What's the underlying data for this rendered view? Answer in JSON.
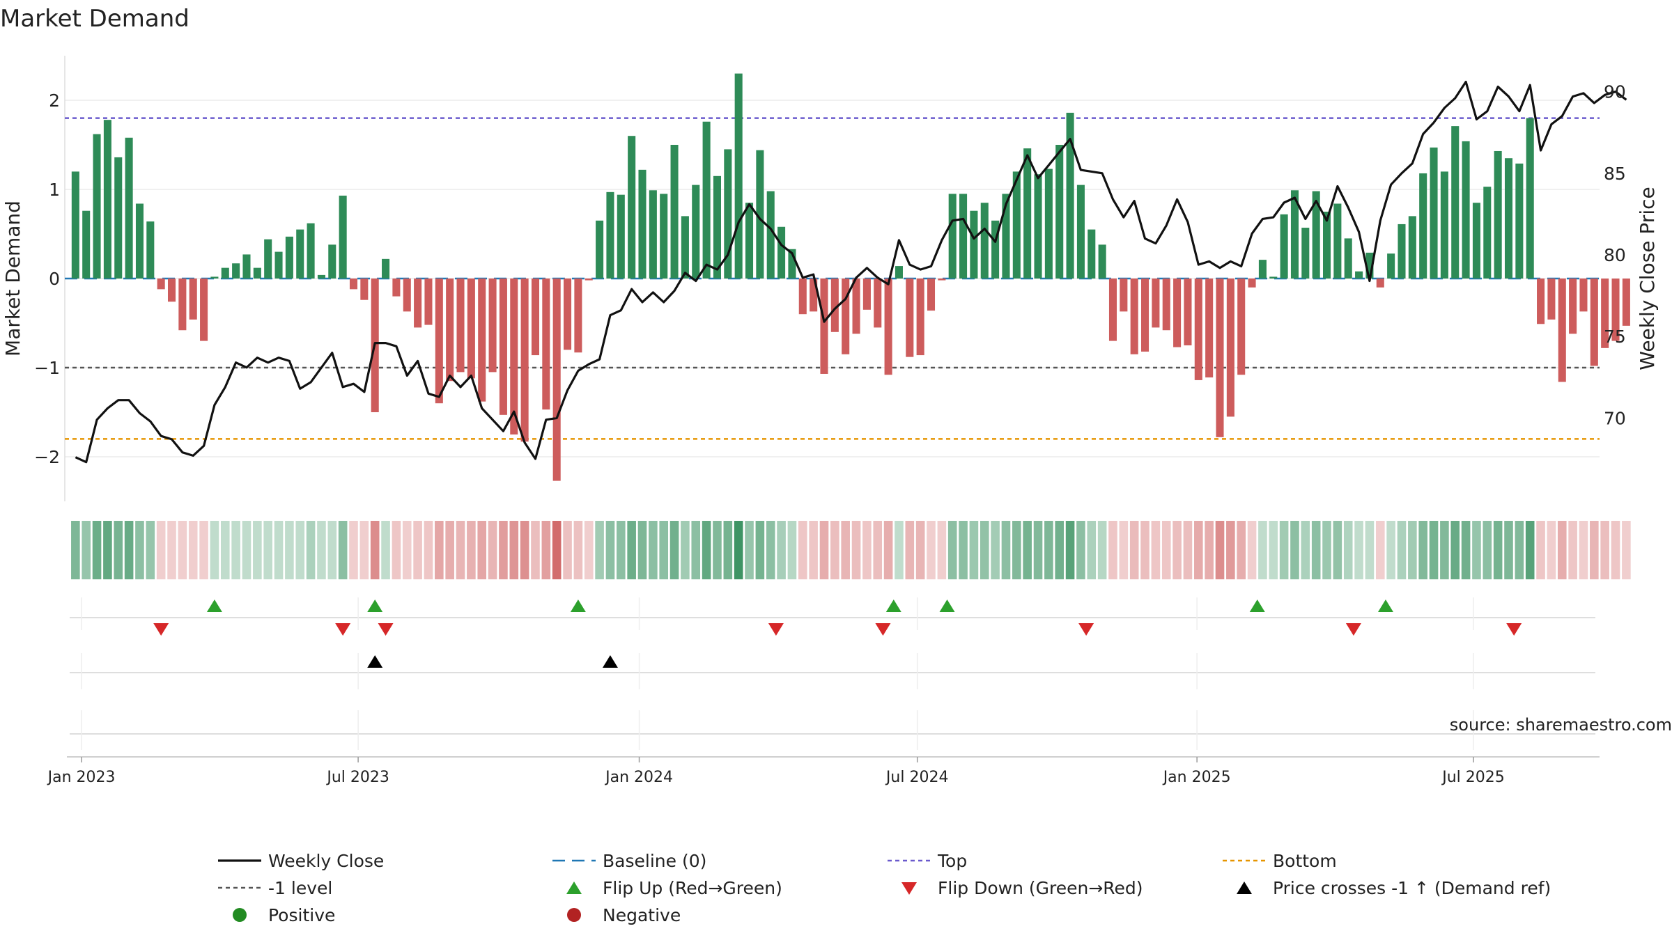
{
  "chart_data": {
    "type": "bar",
    "title": "Market Demand",
    "ylabel_left": "Market Demand",
    "ylabel_right": "Weekly Close Price",
    "source": "source: sharemaestro.com",
    "ylim_left": [
      -2.5,
      2.5
    ],
    "yticks_left": [
      {
        "v": 2,
        "label": "2"
      },
      {
        "v": 1,
        "label": "1"
      },
      {
        "v": 0,
        "label": "0"
      },
      {
        "v": -1,
        "label": "−1"
      },
      {
        "v": -2,
        "label": "−2"
      }
    ],
    "ylim_right": [
      64.9,
      92.2
    ],
    "yticks_right": [
      {
        "v": 90,
        "label": "90"
      },
      {
        "v": 85,
        "label": "85"
      },
      {
        "v": 80,
        "label": "80"
      },
      {
        "v": 75,
        "label": "75"
      },
      {
        "v": 70,
        "label": "70"
      }
    ],
    "x_start_week": -1,
    "x_end_week": 142.5,
    "xticks": [
      {
        "week": 0.57,
        "label": "Jan 2023"
      },
      {
        "week": 26.43,
        "label": "Jul 2023"
      },
      {
        "week": 52.71,
        "label": "Jan 2024"
      },
      {
        "week": 78.71,
        "label": "Jul 2024"
      },
      {
        "week": 104.86,
        "label": "Jan 2025"
      },
      {
        "week": 130.71,
        "label": "Jul 2025"
      }
    ],
    "reference_lines": {
      "baseline": 0,
      "top": 1.8,
      "bottom": -1.8,
      "minus_one": -1
    },
    "colors": {
      "positive": "#2e8b57",
      "negative": "#cd5c5c",
      "price": "#111111",
      "baseline": "#1f77b4",
      "top": "#6a5acd",
      "bottom": "#e69500",
      "minus_one": "#555555",
      "flip_up": "#2ca02c",
      "flip_down": "#d62728",
      "cross": "#000000",
      "legend_positive": "#228b22",
      "legend_negative": "#b22222"
    },
    "demand": [
      1.2,
      0.76,
      1.62,
      1.78,
      1.36,
      1.58,
      0.84,
      0.64,
      -0.12,
      -0.26,
      -0.58,
      -0.46,
      -0.7,
      0.02,
      0.12,
      0.17,
      0.27,
      0.12,
      0.44,
      0.3,
      0.47,
      0.55,
      0.62,
      0.04,
      0.38,
      0.93,
      -0.12,
      -0.24,
      -1.5,
      0.22,
      -0.2,
      -0.37,
      -0.55,
      -0.52,
      -1.4,
      -1.15,
      -1.05,
      -1.12,
      -1.38,
      -1.05,
      -1.53,
      -1.75,
      -1.83,
      -0.86,
      -1.47,
      -2.27,
      -0.8,
      -0.83,
      -0.02,
      0.65,
      0.97,
      0.94,
      1.6,
      1.22,
      0.99,
      0.95,
      1.5,
      0.7,
      1.05,
      1.76,
      1.15,
      1.45,
      2.3,
      0.85,
      1.44,
      0.98,
      0.58,
      0.33,
      -0.4,
      -0.37,
      -1.07,
      -0.6,
      -0.85,
      -0.62,
      -0.35,
      -0.55,
      -1.08,
      0.14,
      -0.88,
      -0.86,
      -0.36,
      -0.02,
      0.95,
      0.95,
      0.76,
      0.85,
      0.65,
      0.95,
      1.2,
      1.46,
      1.17,
      1.23,
      1.5,
      1.86,
      1.05,
      0.55,
      0.38,
      -0.7,
      -0.37,
      -0.85,
      -0.82,
      -0.55,
      -0.58,
      -0.77,
      -0.75,
      -1.14,
      -1.11,
      -1.78,
      -1.55,
      -1.08,
      -0.1,
      0.21,
      0.02,
      0.72,
      0.99,
      0.57,
      0.98,
      0.75,
      0.84,
      0.45,
      0.08,
      0.29,
      -0.1,
      0.28,
      0.61,
      0.7,
      1.18,
      1.47,
      1.2,
      1.71,
      1.54,
      0.85,
      1.03,
      1.43,
      1.35,
      1.29,
      1.8,
      -0.51,
      -0.46,
      -1.16,
      -0.62,
      -0.37,
      -0.98,
      -0.78,
      -0.7,
      -0.53
    ],
    "price": [
      67.6,
      67.3,
      69.9,
      70.6,
      71.1,
      71.1,
      70.3,
      69.8,
      68.9,
      68.7,
      67.9,
      67.7,
      68.3,
      70.8,
      71.9,
      73.4,
      73.1,
      73.7,
      73.4,
      73.7,
      73.5,
      71.8,
      72.2,
      73.1,
      74.0,
      71.9,
      72.1,
      71.6,
      74.6,
      74.6,
      74.4,
      72.6,
      73.5,
      71.5,
      71.3,
      72.6,
      71.9,
      72.6,
      70.6,
      69.9,
      69.2,
      70.4,
      68.5,
      67.5,
      69.9,
      70.0,
      71.7,
      72.9,
      73.3,
      73.6,
      76.3,
      76.6,
      77.9,
      77.1,
      77.7,
      77.1,
      77.8,
      78.9,
      78.4,
      79.4,
      79.1,
      80.0,
      82.0,
      83.1,
      82.2,
      81.6,
      80.6,
      80.1,
      78.6,
      78.8,
      75.9,
      76.7,
      77.3,
      78.6,
      79.2,
      78.6,
      78.2,
      80.9,
      79.4,
      79.1,
      79.3,
      80.9,
      82.1,
      82.2,
      81.0,
      81.6,
      80.8,
      83.1,
      84.6,
      86.1,
      84.7,
      85.5,
      86.3,
      87.1,
      85.2,
      85.1,
      85.0,
      83.4,
      82.3,
      83.3,
      81.0,
      80.7,
      81.8,
      83.4,
      82.0,
      79.4,
      79.6,
      79.2,
      79.6,
      79.3,
      81.3,
      82.2,
      82.3,
      83.2,
      83.5,
      82.2,
      83.3,
      82.1,
      84.2,
      82.9,
      81.4,
      78.4,
      82.1,
      84.3,
      85.0,
      85.6,
      87.4,
      88.1,
      89.0,
      89.6,
      90.6,
      88.3,
      88.8,
      90.3,
      89.7,
      88.8,
      90.4,
      86.4,
      88.0,
      88.5,
      89.7,
      89.9,
      89.3,
      89.8,
      90.0,
      89.5
    ],
    "strip_opacity": [
      0.62,
      0.5,
      0.7,
      0.75,
      0.65,
      0.72,
      0.55,
      0.5,
      0.3,
      0.3,
      0.3,
      0.3,
      0.3,
      0.3,
      0.3,
      0.3,
      0.3,
      0.3,
      0.3,
      0.3,
      0.3,
      0.3,
      0.4,
      0.3,
      0.3,
      0.55,
      0.3,
      0.3,
      0.7,
      0.3,
      0.35,
      0.3,
      0.35,
      0.35,
      0.55,
      0.5,
      0.45,
      0.48,
      0.55,
      0.45,
      0.6,
      0.65,
      0.68,
      0.4,
      0.58,
      0.9,
      0.38,
      0.38,
      0.3,
      0.45,
      0.55,
      0.55,
      0.7,
      0.62,
      0.55,
      0.55,
      0.68,
      0.45,
      0.55,
      0.75,
      0.6,
      0.66,
      0.92,
      0.5,
      0.66,
      0.55,
      0.42,
      0.35,
      0.35,
      0.35,
      0.5,
      0.4,
      0.45,
      0.4,
      0.35,
      0.4,
      0.5,
      0.3,
      0.45,
      0.45,
      0.3,
      0.3,
      0.55,
      0.55,
      0.48,
      0.52,
      0.44,
      0.55,
      0.6,
      0.66,
      0.6,
      0.62,
      0.68,
      0.8,
      0.55,
      0.4,
      0.35,
      0.35,
      0.3,
      0.42,
      0.4,
      0.35,
      0.35,
      0.4,
      0.4,
      0.52,
      0.5,
      0.7,
      0.62,
      0.5,
      0.3,
      0.3,
      0.3,
      0.45,
      0.55,
      0.4,
      0.55,
      0.48,
      0.52,
      0.38,
      0.3,
      0.3,
      0.3,
      0.3,
      0.4,
      0.45,
      0.6,
      0.66,
      0.6,
      0.72,
      0.68,
      0.5,
      0.55,
      0.66,
      0.62,
      0.6,
      0.8,
      0.35,
      0.3,
      0.5,
      0.35,
      0.3,
      0.45,
      0.4,
      0.35,
      0.3
    ],
    "flip_up_weeks": [
      13,
      28,
      47,
      76.5,
      81.5,
      110.5,
      122.5
    ],
    "flip_down_weeks": [
      8,
      25,
      29,
      65.5,
      75.5,
      94.5,
      119.5,
      134.5
    ],
    "cross_weeks": [
      28,
      50
    ],
    "legend": [
      {
        "key": "weekly_close",
        "label": "Weekly Close"
      },
      {
        "key": "baseline",
        "label": "Baseline (0)"
      },
      {
        "key": "top",
        "label": "Top"
      },
      {
        "key": "bottom",
        "label": "Bottom"
      },
      {
        "key": "minus_one",
        "label": "-1 level"
      },
      {
        "key": "flip_up",
        "label": "Flip Up (Red→Green)"
      },
      {
        "key": "flip_down",
        "label": "Flip Down (Green→Red)"
      },
      {
        "key": "cross",
        "label": "Price crosses -1 ↑ (Demand ref)"
      },
      {
        "key": "positive",
        "label": "Positive"
      },
      {
        "key": "negative",
        "label": "Negative"
      }
    ]
  }
}
